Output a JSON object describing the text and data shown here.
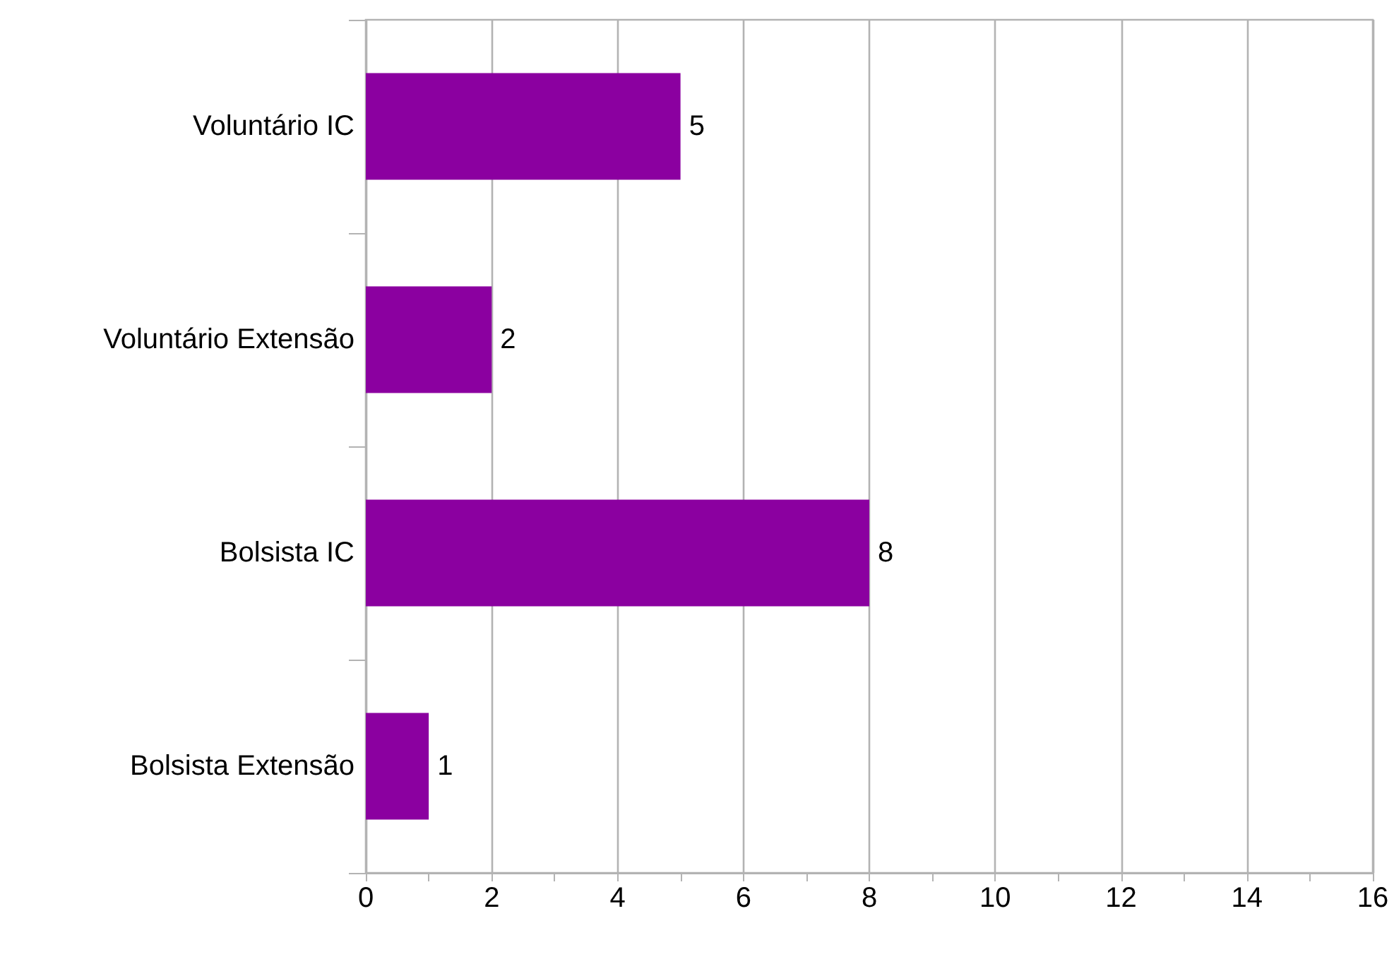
{
  "chart_data": {
    "type": "bar",
    "orientation": "horizontal",
    "categories": [
      "Voluntário IC",
      "Voluntário Extensão",
      "Bolsista IC",
      "Bolsista Extensão"
    ],
    "values": [
      5,
      2,
      8,
      1
    ],
    "color": "#8b00a0",
    "xlim": [
      0,
      16
    ],
    "xticks": [
      0,
      {
        "value": 1,
        "label": null
      },
      2,
      {
        "value": 3,
        "label": null
      },
      4,
      {
        "value": 5,
        "label": null
      },
      6,
      {
        "value": 7,
        "label": null
      },
      8,
      {
        "value": 9,
        "label": null
      },
      10,
      {
        "value": 11,
        "label": null
      },
      12,
      {
        "value": 13,
        "label": null
      },
      14,
      {
        "value": 15,
        "label": null
      },
      16
    ],
    "grid": "x",
    "data_labels": true
  }
}
